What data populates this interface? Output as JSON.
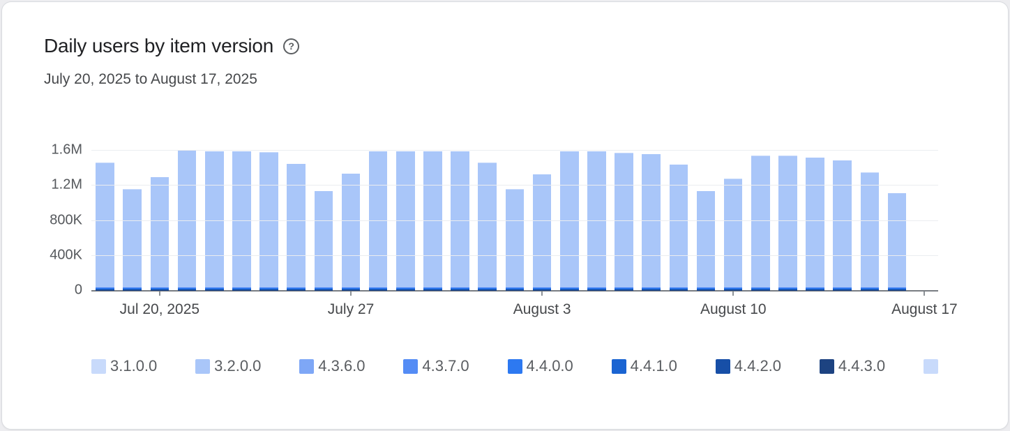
{
  "card": {
    "title": "Daily users by item version",
    "subtitle": "July 20, 2025 to August 17, 2025",
    "help_icon": "?"
  },
  "legend": {
    "items": [
      {
        "label": "3.1.0.0",
        "color": "#c8dafb"
      },
      {
        "label": "3.2.0.0",
        "color": "#a9c6f9"
      },
      {
        "label": "4.3.6.0",
        "color": "#7ea7f6"
      },
      {
        "label": "4.3.7.0",
        "color": "#548cf5"
      },
      {
        "label": "4.4.0.0",
        "color": "#2d79f1"
      },
      {
        "label": "4.4.1.0",
        "color": "#1a64d2"
      },
      {
        "label": "4.4.2.0",
        "color": "#174fa7"
      },
      {
        "label": "4.4.3.0",
        "color": "#1d4381"
      },
      {
        "label": "",
        "color": "#c8dafb"
      }
    ]
  },
  "chart_data": {
    "type": "bar",
    "subtype": "stacked-bar",
    "title": "Daily users by item version",
    "date_range": "July 20, 2025 to August 17, 2025",
    "ylim": [
      0,
      1600000
    ],
    "grid": true,
    "legend_position": "bottom",
    "y_ticks": [
      {
        "value": 0,
        "label": "0"
      },
      {
        "value": 400000,
        "label": "400K"
      },
      {
        "value": 800000,
        "label": "800K"
      },
      {
        "value": 1200000,
        "label": "1.2M"
      },
      {
        "value": 1600000,
        "label": "1.6M"
      }
    ],
    "x": [
      "Jul 18",
      "Jul 19",
      "Jul 20",
      "Jul 21",
      "Jul 22",
      "Jul 23",
      "Jul 24",
      "Jul 25",
      "Jul 26",
      "Jul 27",
      "Jul 28",
      "Jul 29",
      "Jul 30",
      "Jul 31",
      "Aug 1",
      "Aug 2",
      "Aug 3",
      "Aug 4",
      "Aug 5",
      "Aug 6",
      "Aug 7",
      "Aug 8",
      "Aug 9",
      "Aug 10",
      "Aug 11",
      "Aug 12",
      "Aug 13",
      "Aug 14",
      "Aug 15",
      "Aug 16",
      "Aug 17"
    ],
    "x_ticks": [
      {
        "index": 2,
        "label": "Jul 20, 2025"
      },
      {
        "index": 9,
        "label": "July 27"
      },
      {
        "index": 16,
        "label": "August 3"
      },
      {
        "index": 23,
        "label": "August 10"
      },
      {
        "index": 30,
        "label": "August 17"
      }
    ],
    "totals": [
      1440000,
      1140000,
      1280000,
      1580000,
      1570000,
      1570000,
      1560000,
      1430000,
      1120000,
      1320000,
      1570000,
      1570000,
      1570000,
      1570000,
      1440000,
      1140000,
      1310000,
      1570000,
      1570000,
      1550000,
      1540000,
      1420000,
      1120000,
      1260000,
      1520000,
      1520000,
      1500000,
      1470000,
      1330000,
      1100000,
      0
    ],
    "stack": [
      {
        "name": "4.4.3.0",
        "color": "#1d4381",
        "daily": 2000
      },
      {
        "name": "4.4.2.0",
        "color": "#174fa7",
        "daily": 3000
      },
      {
        "name": "4.4.1.0",
        "color": "#1a64d2",
        "daily": 14000
      },
      {
        "name": "4.4.0.0",
        "color": "#2d79f1",
        "daily": 8000
      },
      {
        "name": "4.3.7.0",
        "color": "#548cf5",
        "daily": 4000
      },
      {
        "name": "4.3.6.0",
        "color": "#7ea7f6",
        "daily": 3000
      },
      {
        "name": "3.2.0.0",
        "color": "#a9c6f9",
        "daily": "remainder"
      },
      {
        "name": "3.1.0.0",
        "color": "#c8dafb",
        "daily": 4000
      }
    ]
  }
}
